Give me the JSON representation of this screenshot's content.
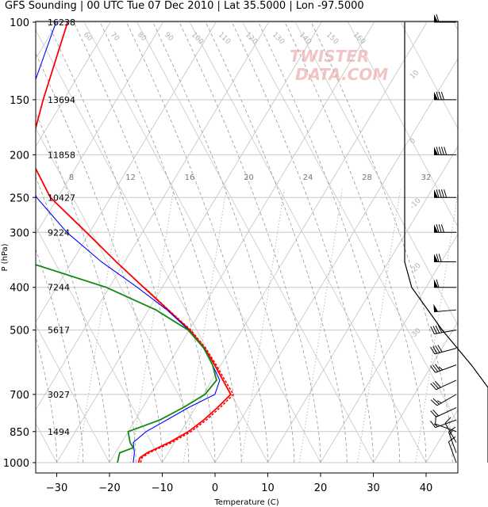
{
  "title": "GFS Sounding | 00 UTC Tue 07 Dec 2010 | Lat 35.5000 | Lon -97.5000",
  "watermark": [
    "TWISTER",
    "DATA.COM"
  ],
  "chart_data": {
    "type": "line",
    "chart_kind": "skew-T log-P sounding",
    "xlabel": "Temperature (C)",
    "ylabel": "P (hPa)",
    "xlim": [
      -33,
      47
    ],
    "ylim": [
      1000,
      100
    ],
    "y_scale": "log",
    "grid": true,
    "x_ticks": [
      -30,
      -20,
      -10,
      0,
      10,
      20,
      30,
      40
    ],
    "pressure_levels": [
      {
        "p": 100,
        "label": "100",
        "height": "16238"
      },
      {
        "p": 150,
        "label": "150",
        "height": "13694"
      },
      {
        "p": 200,
        "label": "200",
        "height": "11858"
      },
      {
        "p": 250,
        "label": "250",
        "height": "10427"
      },
      {
        "p": 300,
        "label": "300",
        "height": "9224"
      },
      {
        "p": 400,
        "label": "400",
        "height": "7244"
      },
      {
        "p": 500,
        "label": "500",
        "height": "5617"
      },
      {
        "p": 700,
        "label": "700",
        "height": "3027"
      },
      {
        "p": 850,
        "label": "850",
        "height": "1494"
      },
      {
        "p": 1000,
        "label": "1000",
        "height": ""
      }
    ],
    "mixing_ratio_labels": [
      "8",
      "12",
      "16",
      "20",
      "24",
      "28",
      "32"
    ],
    "mixing_ratio_temps": [
      -26,
      -16,
      -6,
      5,
      16,
      27,
      38
    ],
    "isotherm_labels": [
      "60",
      "70",
      "80",
      "90",
      "100",
      "110",
      "120",
      "130",
      "140",
      "150",
      "160"
    ],
    "theta_labels": [
      "10",
      "0",
      "-10",
      "-20",
      "-30"
    ],
    "series": [
      {
        "name": "Temperature",
        "color": "#ff0000",
        "p": [
          1000,
          975,
          950,
          925,
          900,
          850,
          800,
          750,
          700,
          650,
          600,
          550,
          500,
          450,
          400,
          350,
          300,
          250,
          200,
          150,
          100
        ],
        "t": [
          -14.5,
          -14.8,
          -14.0,
          -12.5,
          -11.0,
          -8.6,
          -7.0,
          -5.8,
          -4.8,
          -7.9,
          -11.2,
          -15.0,
          -19.9,
          -26.3,
          -33.5,
          -41.6,
          -50.6,
          -61.4,
          -70.4,
          -73.9,
          -78.1
        ]
      },
      {
        "name": "Parcel",
        "color": "#0000ff",
        "p": [
          1000,
          950,
          900,
          850,
          800,
          750,
          700,
          650,
          600,
          550,
          500,
          450,
          400,
          350,
          300,
          250,
          200,
          150,
          100
        ],
        "t": [
          -15.5,
          -16.4,
          -17.8,
          -16.6,
          -14.0,
          -11.3,
          -7.8,
          -8.5,
          -11.6,
          -15.2,
          -20.1,
          -26.5,
          -34.7,
          -44.4,
          -54.3,
          -64.0,
          -72.4,
          -76.7,
          -80.3
        ]
      },
      {
        "name": "Dewpoint",
        "color": "#108a10",
        "p": [
          1000,
          950,
          925,
          900,
          850,
          800,
          750,
          700,
          650,
          600,
          550,
          500,
          450,
          400,
          350,
          300,
          250,
          200,
          150,
          100
        ],
        "t": [
          -18.5,
          -19.2,
          -17.2,
          -18.4,
          -20.0,
          -15.3,
          -12.3,
          -9.7,
          -9.1,
          -11.6,
          -15.1,
          -20.2,
          -28.6,
          -40.6,
          -58.6,
          -65.5,
          -67.5,
          -72.8,
          -81.5,
          -88.8
        ]
      },
      {
        "name": "Virtual temperature",
        "color": "#ff0000",
        "dashed": true,
        "p": [
          1000,
          975,
          950,
          925,
          900,
          850,
          800,
          750,
          700,
          650,
          600,
          550,
          500,
          450,
          400
        ],
        "t": [
          -14.1,
          -14.4,
          -13.6,
          -12.1,
          -10.5,
          -8.1,
          -6.5,
          -5.3,
          -4.3,
          -7.5,
          -10.9,
          -14.8,
          -19.7,
          -26.2,
          -33.4
        ]
      }
    ],
    "winds": [
      {
        "p": 100,
        "dir": 270,
        "spd": 60
      },
      {
        "p": 150,
        "dir": 270,
        "spd": 80
      },
      {
        "p": 200,
        "dir": 270,
        "spd": 90
      },
      {
        "p": 250,
        "dir": 270,
        "spd": 90
      },
      {
        "p": 300,
        "dir": 270,
        "spd": 80
      },
      {
        "p": 350,
        "dir": 270,
        "spd": 70
      },
      {
        "p": 400,
        "dir": 270,
        "spd": 60
      },
      {
        "p": 450,
        "dir": 265,
        "spd": 50
      },
      {
        "p": 500,
        "dir": 260,
        "spd": 45
      },
      {
        "p": 550,
        "dir": 255,
        "spd": 40
      },
      {
        "p": 600,
        "dir": 250,
        "spd": 35
      },
      {
        "p": 650,
        "dir": 245,
        "spd": 30
      },
      {
        "p": 700,
        "dir": 240,
        "spd": 25
      },
      {
        "p": 750,
        "dir": 245,
        "spd": 20
      },
      {
        "p": 800,
        "dir": 250,
        "spd": 15
      },
      {
        "p": 850,
        "dir": 290,
        "spd": 10
      },
      {
        "p": 900,
        "dir": 330,
        "spd": 10
      },
      {
        "p": 950,
        "dir": 340,
        "spd": 15
      },
      {
        "p": 1000,
        "dir": 340,
        "spd": 10
      }
    ],
    "hodograph_profile": [
      {
        "p": 100,
        "v": 0
      },
      {
        "p": 300,
        "v": 0
      },
      {
        "p": 350,
        "v": 0
      },
      {
        "p": 400,
        "v": 5
      },
      {
        "p": 500,
        "v": 27
      },
      {
        "p": 600,
        "v": 48
      },
      {
        "p": 675,
        "v": 60
      },
      {
        "p": 1000,
        "v": 60
      }
    ]
  }
}
